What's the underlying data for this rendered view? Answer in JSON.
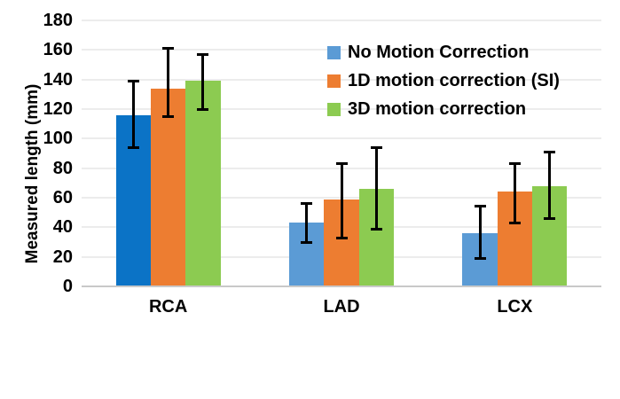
{
  "chart_data": {
    "type": "bar",
    "title": "",
    "xlabel": "",
    "ylabel": "Measured length (mm)",
    "ylim": [
      0,
      180
    ],
    "ytick_step": 20,
    "grid": true,
    "legend_position": "top-right-inside",
    "gridline_color": "#ECECEC",
    "axis_line_color": "#C9C9C9",
    "error_bar_color": "#000000",
    "text_color": "#000000",
    "categories": [
      "RCA",
      "LAD",
      "LCX"
    ],
    "series": [
      {
        "name": "No Motion Correction",
        "color": "#5B9BD5",
        "values": [
          116,
          43,
          36
        ],
        "error_low": [
          93,
          29,
          18
        ],
        "error_high": [
          140,
          57,
          55
        ]
      },
      {
        "name": "1D motion correction (SI)",
        "color": "#ED7D31",
        "values": [
          134,
          59,
          64
        ],
        "error_low": [
          114,
          32,
          42
        ],
        "error_high": [
          162,
          84,
          84
        ]
      },
      {
        "name": "3D motion correction",
        "color": "#8CCB51",
        "values": [
          139,
          66,
          68
        ],
        "error_low": [
          119,
          38,
          45
        ],
        "error_high": [
          158,
          95,
          92
        ]
      }
    ],
    "bar_color_overrides": [
      {
        "category": "RCA",
        "series_index": 0,
        "color": "#0B73C6"
      }
    ]
  }
}
